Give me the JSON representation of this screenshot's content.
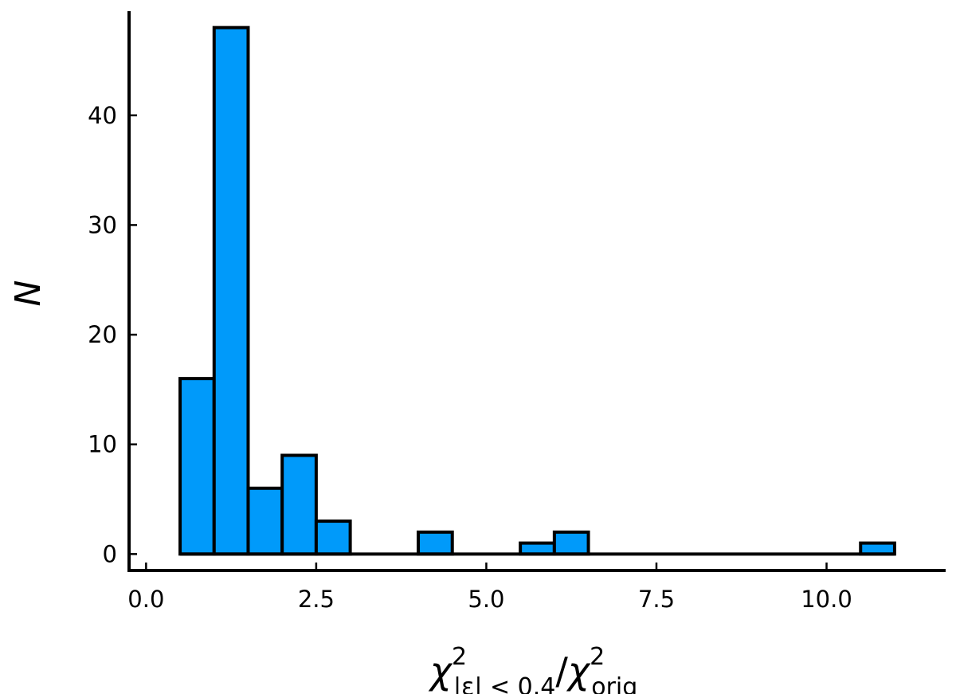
{
  "chart_data": {
    "type": "bar",
    "histogram": true,
    "bin_edges": [
      0.5,
      1.0,
      1.5,
      2.0,
      2.5,
      3.0,
      3.5,
      4.0,
      4.5,
      5.0,
      5.5,
      6.0,
      6.5,
      7.0,
      7.5,
      8.0,
      8.5,
      9.0,
      9.5,
      10.0,
      10.5,
      11.0
    ],
    "counts": [
      16,
      48,
      6,
      9,
      3,
      0,
      0,
      2,
      0,
      0,
      1,
      2,
      0,
      0,
      0,
      0,
      0,
      0,
      0,
      0,
      1
    ],
    "xlim": [
      -0.25,
      11.75
    ],
    "ylim": [
      -1.5,
      49.5
    ],
    "x_ticks": [
      0.0,
      2.5,
      5.0,
      7.5,
      10.0
    ],
    "x_tick_labels": [
      "0.0",
      "2.5",
      "5.0",
      "7.5",
      "10.0"
    ],
    "y_ticks": [
      0,
      10,
      20,
      30,
      40
    ],
    "y_tick_labels": [
      "0",
      "10",
      "20",
      "30",
      "40"
    ],
    "ylabel": "N",
    "xlabel_parts": {
      "chi_1": "χ",
      "sup_1": "2",
      "sub_1": "|ε| < 0.4",
      "slash": "/",
      "chi_2": "χ",
      "sup_2": "2",
      "sub_2": "orig"
    },
    "grid": false,
    "legend": "none",
    "bar_color": "#009AFA",
    "edge_color": "#000000"
  }
}
